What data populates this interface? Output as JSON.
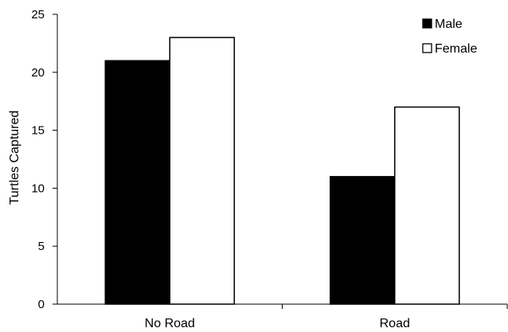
{
  "chart_data": {
    "type": "bar",
    "title": "",
    "xlabel": "",
    "ylabel": "Turtles Captured",
    "categories": [
      "No Road",
      "Road"
    ],
    "series": [
      {
        "name": "Male",
        "values": [
          21,
          11
        ],
        "fill": "#000000"
      },
      {
        "name": "Female",
        "values": [
          23,
          17
        ],
        "fill": "#ffffff"
      }
    ],
    "ylim": [
      0,
      25
    ],
    "yticks": [
      0,
      5,
      10,
      15,
      20,
      25
    ],
    "grid": false,
    "legend_position": "top-right"
  }
}
